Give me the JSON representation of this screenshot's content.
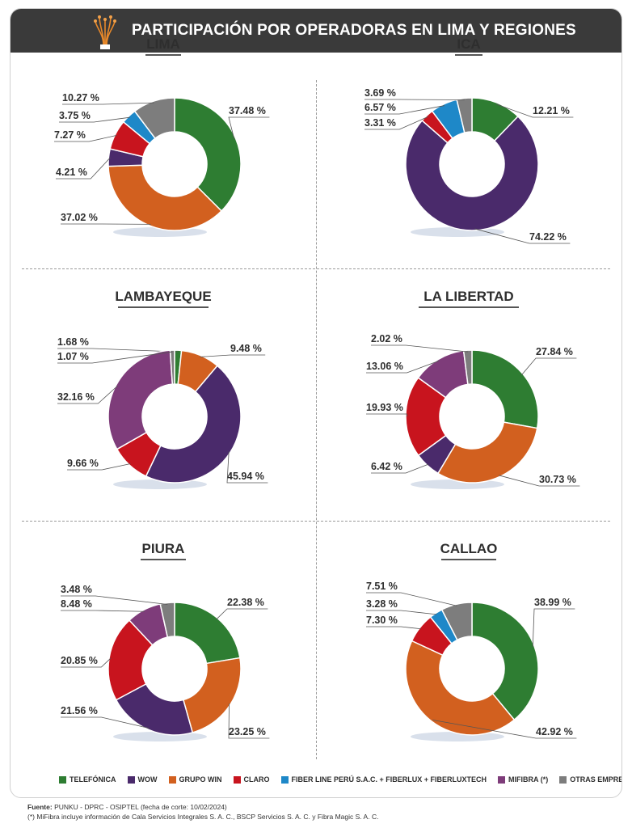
{
  "header": {
    "title": "PARTICIPACIÓN POR OPERADORAS EN LIMA Y REGIONES",
    "icon": "fiber-optic-icon"
  },
  "colors": {
    "telefonica": "#2e7d32",
    "wow": "#4a2a6b",
    "grupo_win": "#d2601f",
    "claro": "#c8141e",
    "fiberline": "#1e88c8",
    "mifibra": "#7e3c7a",
    "otras": "#7d7d7d"
  },
  "chart_data": [
    {
      "type": "pie",
      "title": "LIMA",
      "slices": [
        {
          "key": "telefonica",
          "value": 37.48,
          "label": "37.48 %"
        },
        {
          "key": "grupo_win",
          "value": 37.02,
          "label": "37.02 %"
        },
        {
          "key": "wow",
          "value": 4.21,
          "label": "4.21 %"
        },
        {
          "key": "claro",
          "value": 7.27,
          "label": "7.27 %"
        },
        {
          "key": "fiberline",
          "value": 3.75,
          "label": "3.75 %"
        },
        {
          "key": "otras",
          "value": 10.27,
          "label": "10.27 %"
        }
      ]
    },
    {
      "type": "pie",
      "title": "ICA",
      "slices": [
        {
          "key": "telefonica",
          "value": 12.21,
          "label": "12.21 %"
        },
        {
          "key": "wow",
          "value": 74.22,
          "label": "74.22 %"
        },
        {
          "key": "claro",
          "value": 3.31,
          "label": "3.31 %"
        },
        {
          "key": "fiberline",
          "value": 6.57,
          "label": "6.57 %"
        },
        {
          "key": "otras",
          "value": 3.69,
          "label": "3.69 %"
        }
      ]
    },
    {
      "type": "pie",
      "title": "LAMBAYEQUE",
      "slices": [
        {
          "key": "telefonica",
          "value": 1.68,
          "label": "1.68 %"
        },
        {
          "key": "grupo_win",
          "value": 9.48,
          "label": "9.48 %"
        },
        {
          "key": "wow",
          "value": 45.94,
          "label": "45.94 %"
        },
        {
          "key": "claro",
          "value": 9.66,
          "label": "9.66 %"
        },
        {
          "key": "mifibra",
          "value": 32.16,
          "label": "32.16 %"
        },
        {
          "key": "otras",
          "value": 1.07,
          "label": "1.07 %"
        }
      ]
    },
    {
      "type": "pie",
      "title": "LA LIBERTAD",
      "slices": [
        {
          "key": "telefonica",
          "value": 27.84,
          "label": "27.84 %"
        },
        {
          "key": "grupo_win",
          "value": 30.73,
          "label": "30.73 %"
        },
        {
          "key": "wow",
          "value": 6.42,
          "label": "6.42 %"
        },
        {
          "key": "claro",
          "value": 19.93,
          "label": "19.93 %"
        },
        {
          "key": "mifibra",
          "value": 13.06,
          "label": "13.06 %"
        },
        {
          "key": "otras",
          "value": 2.02,
          "label": "2.02 %"
        }
      ]
    },
    {
      "type": "pie",
      "title": "PIURA",
      "slices": [
        {
          "key": "telefonica",
          "value": 22.38,
          "label": "22.38 %"
        },
        {
          "key": "grupo_win",
          "value": 23.25,
          "label": "23.25 %"
        },
        {
          "key": "wow",
          "value": 21.56,
          "label": "21.56 %"
        },
        {
          "key": "claro",
          "value": 20.85,
          "label": "20.85 %"
        },
        {
          "key": "mifibra",
          "value": 8.48,
          "label": "8.48 %"
        },
        {
          "key": "otras",
          "value": 3.48,
          "label": "3.48 %"
        }
      ]
    },
    {
      "type": "pie",
      "title": "CALLAO",
      "slices": [
        {
          "key": "telefonica",
          "value": 38.99,
          "label": "38.99 %"
        },
        {
          "key": "grupo_win",
          "value": 42.92,
          "label": "42.92 %"
        },
        {
          "key": "claro",
          "value": 7.3,
          "label": "7.30 %"
        },
        {
          "key": "fiberline",
          "value": 3.28,
          "label": "3.28 %"
        },
        {
          "key": "otras",
          "value": 7.51,
          "label": "7.51 %"
        }
      ]
    }
  ],
  "legend": [
    {
      "key": "telefonica",
      "label": "TELEFÓNICA"
    },
    {
      "key": "wow",
      "label": "WOW"
    },
    {
      "key": "grupo_win",
      "label": "GRUPO WIN"
    },
    {
      "key": "claro",
      "label": "CLARO"
    },
    {
      "key": "fiberline",
      "label": "FIBER LINE PERÚ S.A.C. + FIBERLUX + FIBERLUXTECH"
    },
    {
      "key": "mifibra",
      "label": "MIFIBRA (*)"
    },
    {
      "key": "otras",
      "label": "OTRAS EMPRESAS"
    }
  ],
  "source": {
    "prefix": "Fuente:",
    "text": " PUNKU - DPRC - OSIPTEL (fecha de corte: 10/02/2024)",
    "note": "(*) MiFibra incluye información de Cala Servicios Integrales S. A. C., BSCP Servicios S. A. C. y Fibra Magic S. A. C."
  }
}
